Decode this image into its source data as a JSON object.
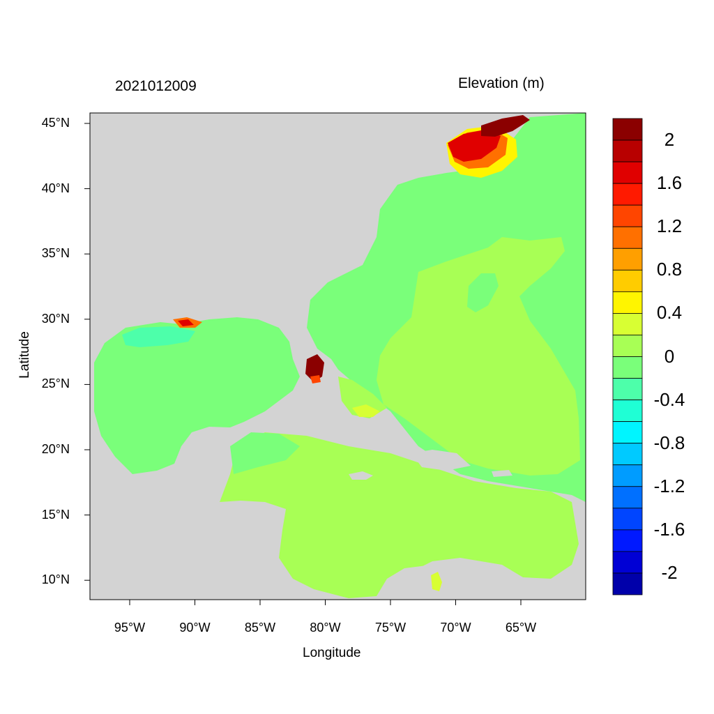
{
  "header": {
    "timestamp": "2021012009",
    "variable": "Elevation (m)"
  },
  "axes": {
    "xlabel": "Longitude",
    "ylabel": "Latitude",
    "xticks": [
      "95°W",
      "90°W",
      "85°W",
      "80°W",
      "75°W",
      "70°W",
      "65°W"
    ],
    "yticks": [
      "45°N",
      "40°N",
      "35°N",
      "30°N",
      "25°N",
      "20°N",
      "15°N",
      "10°N"
    ]
  },
  "colorbar": {
    "labels": [
      "2",
      "1.6",
      "1.2",
      "0.8",
      "0.4",
      "0",
      "-0.4",
      "-0.8",
      "-1.2",
      "-1.6",
      "-2"
    ],
    "colors": [
      "#8b0000",
      "#b80000",
      "#e00000",
      "#ff1a00",
      "#ff4500",
      "#ff7000",
      "#ff9f00",
      "#ffcc00",
      "#fff500",
      "#d8ff33",
      "#a8ff55",
      "#7aff7a",
      "#4dffaa",
      "#1fffd5",
      "#00f5ff",
      "#00caff",
      "#009cff",
      "#0070ff",
      "#0045ff",
      "#0019ff",
      "#0000d5",
      "#0000aa"
    ]
  },
  "colors": {
    "land": "#d3d3d3",
    "ocean_zero": "#7aff7a",
    "ocean_low": "#a8ff55",
    "ocean_neg": "#4dffaa",
    "surge_high": "#8b0000"
  }
}
